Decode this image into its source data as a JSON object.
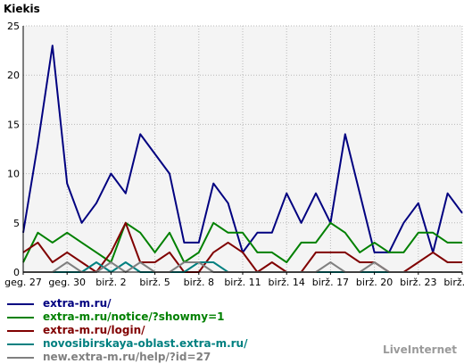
{
  "chart_data": {
    "type": "line",
    "title": "Kiekis",
    "ylim": [
      0,
      25
    ],
    "yticks": [
      0,
      5,
      10,
      15,
      20,
      25
    ],
    "grid": true,
    "x_labels": [
      "geg. 27",
      "geg. 30",
      "birž. 2",
      "birž. 5",
      "birž. 8",
      "birž. 11",
      "birž. 14",
      "birž. 17",
      "birž. 20",
      "birž. 23",
      "birž. 26"
    ],
    "series": [
      {
        "name": "extra-m.ru/",
        "color": "#000080",
        "values": [
          4,
          13,
          23,
          9,
          5,
          7,
          10,
          8,
          14,
          12,
          10,
          3,
          3,
          9,
          7,
          2,
          4,
          4,
          8,
          5,
          8,
          5,
          14,
          8,
          2,
          2,
          5,
          7,
          2,
          8,
          6
        ]
      },
      {
        "name": "extra-m.ru/notice/?showmy=1",
        "color": "#008000",
        "values": [
          1,
          4,
          3,
          4,
          3,
          2,
          1,
          5,
          4,
          2,
          4,
          1,
          2,
          5,
          4,
          4,
          2,
          2,
          1,
          3,
          3,
          5,
          4,
          2,
          3,
          2,
          2,
          4,
          4,
          3,
          3
        ]
      },
      {
        "name": "extra-m.ru/login/",
        "color": "#800000",
        "values": [
          2,
          3,
          1,
          2,
          1,
          0,
          2,
          5,
          1,
          1,
          2,
          0,
          0,
          2,
          3,
          2,
          0,
          1,
          0,
          0,
          2,
          2,
          2,
          1,
          1,
          0,
          0,
          1,
          2,
          1,
          1
        ]
      },
      {
        "name": "novosibirskaya-oblast.extra-m.ru/",
        "color": "#008080",
        "values": [
          0,
          0,
          0,
          0,
          0,
          1,
          0,
          1,
          0,
          0,
          0,
          0,
          1,
          1,
          0,
          0,
          0,
          0,
          0,
          0,
          0,
          0,
          0,
          0,
          0,
          0,
          0,
          0,
          0,
          0,
          0
        ]
      },
      {
        "name": "new.extra-m.ru/help/?id=27",
        "color": "#808080",
        "values": [
          0,
          0,
          0,
          1,
          0,
          0,
          1,
          0,
          1,
          0,
          0,
          1,
          1,
          0,
          0,
          0,
          0,
          0,
          0,
          0,
          0,
          1,
          0,
          0,
          1,
          0,
          0,
          0,
          0,
          0,
          0
        ]
      }
    ]
  },
  "brand": "LiveInternet"
}
